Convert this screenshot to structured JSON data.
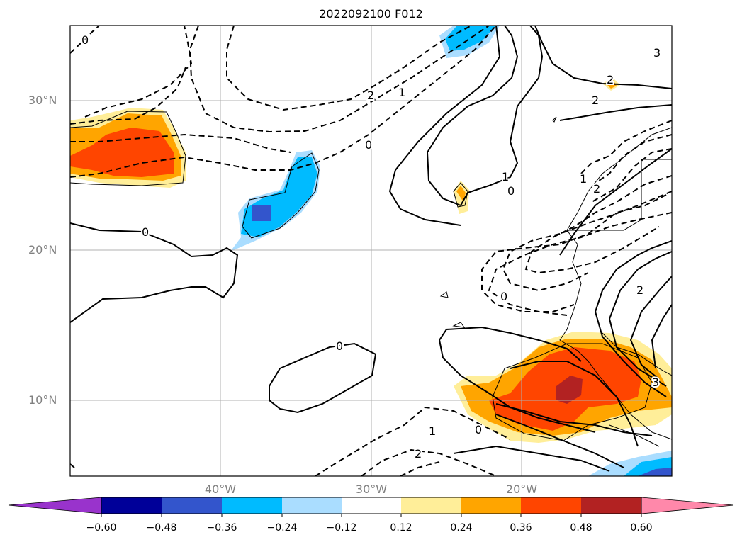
{
  "title": "2022092100 F012",
  "lat_labels": [
    "30°N",
    "20°N",
    "10°N"
  ],
  "lon_labels": [
    "40°W",
    "30°W",
    "20°W"
  ],
  "colorbar": {
    "ticks": [
      "−0.60",
      "−0.48",
      "−0.36",
      "−0.24",
      "−0.12",
      "0.12",
      "0.24",
      "0.36",
      "0.48",
      "0.60"
    ],
    "colors": [
      "#9933cc",
      "#000099",
      "#3355cc",
      "#00bbff",
      "#aaddff",
      "#ffffff",
      "#ffee99",
      "#ffa500",
      "#ff4500",
      "#b22222",
      "#ff88aa"
    ]
  },
  "contour_labels": [
    "0",
    "0",
    "0",
    "0",
    "0",
    "0",
    "0",
    "1",
    "1",
    "1",
    "1",
    "2",
    "2",
    "2",
    "2",
    "2",
    "2",
    "3",
    "3"
  ],
  "shading_colors": {
    "orange_light": "#ffee99",
    "orange": "#ffa500",
    "red_orange": "#ff4500",
    "dark_red": "#b22222",
    "light_blue": "#aaddff",
    "cyan": "#00bbff",
    "blue": "#3355cc"
  }
}
